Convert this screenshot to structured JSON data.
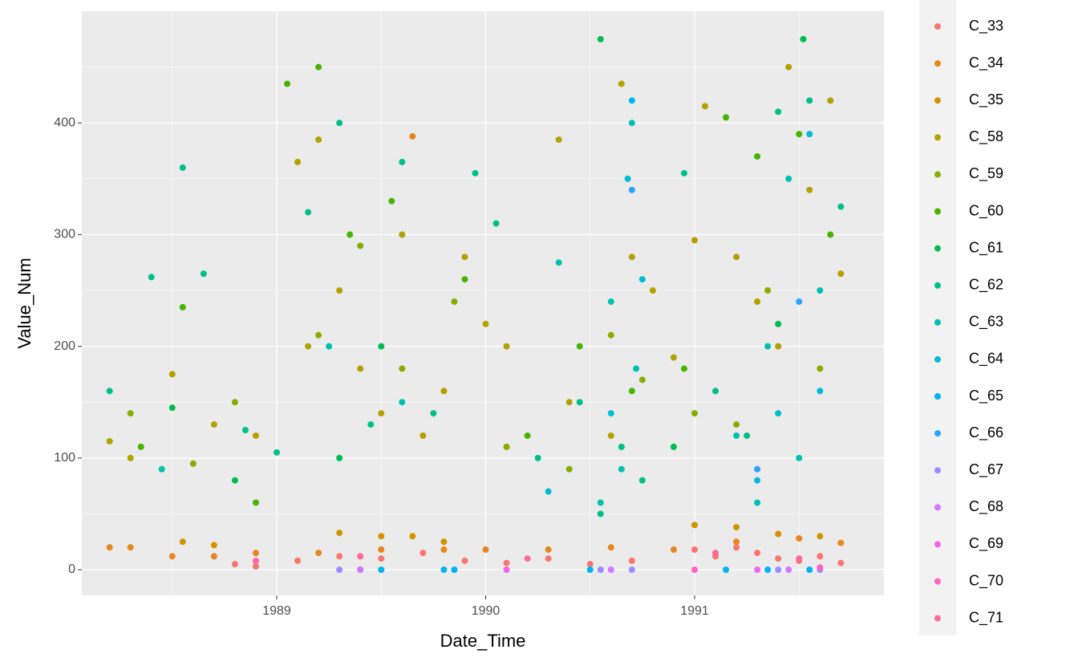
{
  "chart_data": {
    "type": "scatter",
    "x_label": "Date_Time",
    "y_label": "Value_Num",
    "xlim": [
      1988.067,
      1991.906
    ],
    "ylim": [
      -23,
      500
    ],
    "xticks": [
      1989,
      1990,
      1991
    ],
    "yticks": [
      0,
      100,
      200,
      300,
      400
    ],
    "xminor": [
      1988.5,
      1989.5,
      1990.5,
      1991.5
    ],
    "yminor": [
      50,
      150,
      250,
      350,
      450
    ],
    "grid": true,
    "legend_position": "right",
    "series": [
      {
        "name": "C_33",
        "color": "#F8766D",
        "x": [
          1988.8,
          1988.9,
          1989.1,
          1989.3,
          1989.5,
          1989.7,
          1989.9,
          1990.1,
          1990.3,
          1990.5,
          1990.7,
          1991.0,
          1991.1,
          1991.2,
          1991.3,
          1991.4,
          1991.5,
          1991.6,
          1991.7
        ],
        "values": [
          5,
          3,
          8,
          12,
          10,
          15,
          8,
          6,
          10,
          5,
          8,
          18,
          12,
          20,
          15,
          10,
          8,
          12,
          6
        ]
      },
      {
        "name": "C_34",
        "color": "#E7851E",
        "x": [
          1988.2,
          1988.3,
          1988.5,
          1988.7,
          1988.9,
          1989.2,
          1989.5,
          1989.65,
          1989.8,
          1990.0,
          1990.3,
          1990.6,
          1990.9,
          1991.2,
          1991.5,
          1991.7
        ],
        "values": [
          20,
          20,
          12,
          12,
          15,
          15,
          18,
          388,
          18,
          18,
          18,
          20,
          18,
          25,
          28,
          24
        ]
      },
      {
        "name": "C_35",
        "color": "#D09400",
        "x": [
          1988.55,
          1988.7,
          1989.3,
          1989.5,
          1989.65,
          1989.8,
          1991.0,
          1991.2,
          1991.4,
          1991.6
        ],
        "values": [
          25,
          22,
          33,
          30,
          30,
          25,
          40,
          38,
          32,
          30
        ]
      },
      {
        "name": "C_58",
        "color": "#B2A100",
        "x": [
          1988.2,
          1988.3,
          1988.5,
          1988.7,
          1988.9,
          1989.1,
          1989.15,
          1989.2,
          1989.3,
          1989.4,
          1989.5,
          1989.6,
          1989.7,
          1989.8,
          1989.9,
          1990.0,
          1990.1,
          1990.35,
          1990.4,
          1990.6,
          1990.65,
          1990.7,
          1990.8,
          1990.9,
          1991.0,
          1991.05,
          1991.2,
          1991.3,
          1991.4,
          1991.45,
          1991.55,
          1991.65,
          1991.7
        ],
        "values": [
          115,
          100,
          175,
          130,
          120,
          365,
          200,
          385,
          250,
          180,
          140,
          300,
          120,
          160,
          280,
          220,
          200,
          385,
          150,
          120,
          435,
          280,
          250,
          190,
          295,
          415,
          280,
          240,
          200,
          450,
          340,
          420,
          265
        ]
      },
      {
        "name": "C_59",
        "color": "#89AC00",
        "x": [
          1988.3,
          1988.6,
          1988.8,
          1989.2,
          1989.4,
          1989.6,
          1989.85,
          1990.1,
          1990.4,
          1990.6,
          1990.75,
          1991.0,
          1991.2,
          1991.35,
          1991.6
        ],
        "values": [
          140,
          95,
          150,
          210,
          290,
          180,
          240,
          110,
          90,
          210,
          170,
          140,
          130,
          250,
          180
        ]
      },
      {
        "name": "C_60",
        "color": "#45B500",
        "x": [
          1988.35,
          1988.55,
          1988.9,
          1989.05,
          1989.2,
          1989.35,
          1989.55,
          1989.9,
          1990.2,
          1990.45,
          1990.7,
          1990.95,
          1991.15,
          1991.3,
          1991.5,
          1991.65
        ],
        "values": [
          110,
          235,
          60,
          435,
          450,
          300,
          330,
          260,
          120,
          200,
          160,
          180,
          405,
          370,
          390,
          300
        ]
      },
      {
        "name": "C_61",
        "color": "#00BC51",
        "x": [
          1988.5,
          1988.8,
          1989.3,
          1989.5,
          1990.55,
          1990.9,
          1991.4,
          1991.52
        ],
        "values": [
          145,
          80,
          100,
          200,
          475,
          110,
          220,
          475
        ]
      },
      {
        "name": "C_62",
        "color": "#00C087",
        "x": [
          1988.2,
          1988.4,
          1988.55,
          1988.65,
          1988.85,
          1989.0,
          1989.15,
          1989.3,
          1989.45,
          1989.6,
          1989.75,
          1989.95,
          1990.05,
          1990.25,
          1990.45,
          1990.55,
          1990.65,
          1990.75,
          1990.95,
          1991.1,
          1991.25,
          1991.4,
          1991.55,
          1991.7
        ],
        "values": [
          160,
          262,
          360,
          265,
          125,
          105,
          320,
          400,
          130,
          365,
          140,
          355,
          310,
          100,
          150,
          50,
          110,
          80,
          355,
          160,
          120,
          410,
          420,
          325
        ]
      },
      {
        "name": "C_63",
        "color": "#00C0B2",
        "x": [
          1988.45,
          1989.25,
          1989.6,
          1990.35,
          1990.55,
          1990.6,
          1990.65,
          1990.7,
          1990.72,
          1991.2,
          1991.3,
          1991.35,
          1991.45,
          1991.5,
          1991.6
        ],
        "values": [
          90,
          200,
          150,
          275,
          60,
          240,
          90,
          400,
          180,
          120,
          60,
          200,
          350,
          100,
          250
        ]
      },
      {
        "name": "C_64",
        "color": "#00BCD6",
        "x": [
          1989.4,
          1990.3,
          1990.6,
          1990.68,
          1990.75,
          1991.3,
          1991.4,
          1991.55,
          1991.6
        ],
        "values": [
          0,
          70,
          140,
          350,
          260,
          80,
          140,
          390,
          160
        ]
      },
      {
        "name": "C_65",
        "color": "#00B3F2",
        "x": [
          1989.5,
          1989.8,
          1989.85,
          1990.5,
          1990.7,
          1991.15,
          1991.35,
          1991.55
        ],
        "values": [
          0,
          0,
          0,
          0,
          420,
          0,
          0,
          0
        ]
      },
      {
        "name": "C_66",
        "color": "#29A3FF",
        "x": [
          1990.7,
          1991.3,
          1991.5
        ],
        "values": [
          340,
          90,
          240
        ]
      },
      {
        "name": "C_67",
        "color": "#9C8DFF",
        "x": [
          1989.3,
          1990.55,
          1990.7,
          1991.4,
          1991.6
        ],
        "values": [
          0,
          0,
          0,
          0,
          0
        ]
      },
      {
        "name": "C_68",
        "color": "#D277FF",
        "x": [
          1989.4,
          1990.6,
          1991.45
        ],
        "values": [
          0,
          0,
          0
        ]
      },
      {
        "name": "C_69",
        "color": "#F166E8",
        "x": [
          1990.1,
          1991.3
        ],
        "values": [
          0,
          0
        ]
      },
      {
        "name": "C_70",
        "color": "#FF61C7",
        "x": [
          1991.0,
          1991.6
        ],
        "values": [
          0,
          2
        ]
      },
      {
        "name": "C_71",
        "color": "#FF689E",
        "x": [
          1988.9,
          1989.4,
          1990.2,
          1991.1,
          1991.5
        ],
        "values": [
          8,
          12,
          10,
          15,
          10
        ]
      }
    ]
  }
}
